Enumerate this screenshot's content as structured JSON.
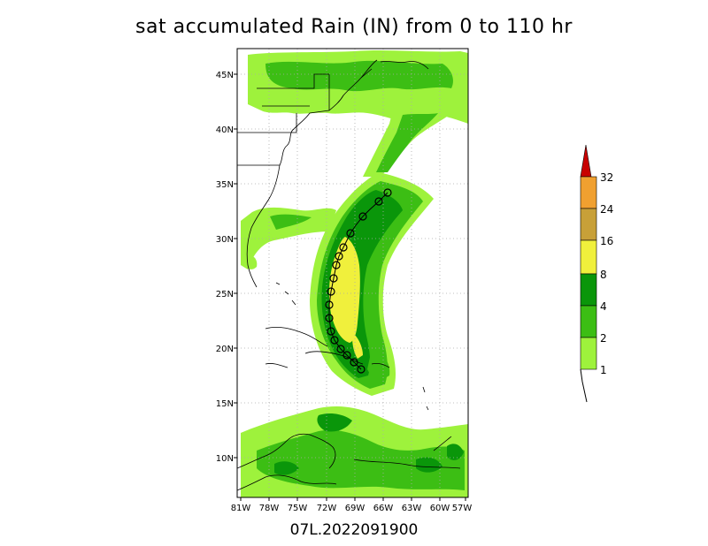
{
  "title": "sat accumulated Rain (IN) from 0 to 110 hr",
  "storm_id": "07L.2022091900",
  "map": {
    "lon_range": [
      -81,
      -57
    ],
    "lat_range": [
      6,
      47
    ],
    "lat_ticks": [
      "45N",
      "40N",
      "35N",
      "30N",
      "25N",
      "20N",
      "15N",
      "10N"
    ],
    "lon_ticks": [
      "81W",
      "78W",
      "75W",
      "72W",
      "69W",
      "66W",
      "63W",
      "60W",
      "57W"
    ],
    "grid": true
  },
  "legend": {
    "labels": [
      "1",
      "2",
      "4",
      "8",
      "16",
      "24",
      "32"
    ],
    "colors": [
      "#9ef23c",
      "#3cbe14",
      "#0a960a",
      "#f0f03c",
      "#c8a038",
      "#f0a030",
      "#c80000"
    ],
    "cap_color": "#c80000"
  },
  "colors": {
    "light_green": "#9ef23c",
    "mid_green": "#3cbe14",
    "dark_green": "#0a960a",
    "yellow": "#f0f03c",
    "grid": "#aaaaaa",
    "border": "#000000"
  },
  "track_icon": "hurricane-symbol-icon"
}
